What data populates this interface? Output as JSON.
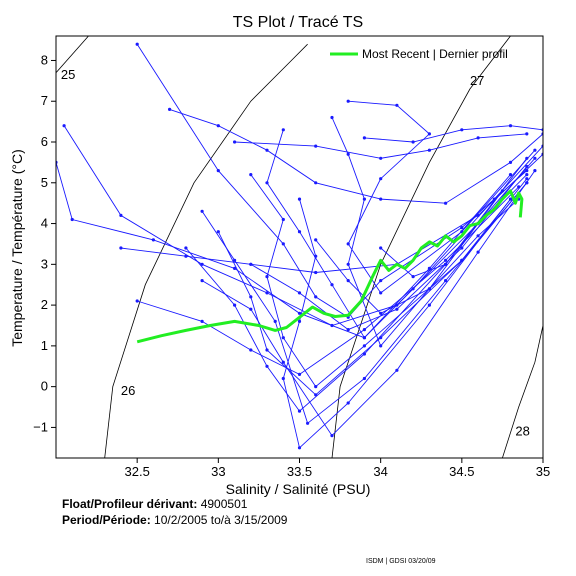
{
  "chart_data": {
    "type": "line",
    "title": "TS Plot / Tracé TS",
    "xlabel": "Salinity / Salinité (PSU)",
    "ylabel": "Temperature / Température (°C)",
    "xlim": [
      32.0,
      35.0
    ],
    "ylim": [
      -1.75,
      8.6
    ],
    "x_ticks": [
      32.5,
      33,
      33.5,
      34,
      34.5,
      35
    ],
    "x_tick_labels": [
      "32.5",
      "33",
      "33.5",
      "34",
      "34.5",
      "35"
    ],
    "y_ticks": [
      -1,
      0,
      1,
      2,
      3,
      4,
      5,
      6,
      7,
      8
    ],
    "y_tick_labels": [
      "−1",
      "0",
      "1",
      "2",
      "3",
      "4",
      "5",
      "6",
      "7",
      "8"
    ],
    "grid": false,
    "legend": {
      "position": "top-right",
      "entries": [
        "Most Recent | Dernier profil"
      ]
    },
    "density_isopleths": [
      {
        "label": "25",
        "points": [
          [
            32.0,
            7.7
          ],
          [
            32.2,
            8.6
          ]
        ]
      },
      {
        "label": "26",
        "points": [
          [
            32.3,
            -1.75
          ],
          [
            32.35,
            0.0
          ],
          [
            32.55,
            2.5
          ],
          [
            32.85,
            5.0
          ],
          [
            33.2,
            7.0
          ],
          [
            33.45,
            8.0
          ],
          [
            33.55,
            8.4
          ]
        ]
      },
      {
        "label": "27",
        "points": [
          [
            33.7,
            -1.75
          ],
          [
            33.75,
            0.0
          ],
          [
            34.0,
            3.0
          ],
          [
            34.3,
            5.5
          ],
          [
            34.55,
            7.3
          ],
          [
            34.8,
            8.6
          ]
        ]
      },
      {
        "label": "28",
        "points": [
          [
            34.75,
            -1.75
          ],
          [
            34.85,
            -0.5
          ],
          [
            34.95,
            0.6
          ],
          [
            35.0,
            1.5
          ]
        ]
      }
    ],
    "profiles_series_name": "",
    "profiles": [
      [
        [
          32.5,
          8.4
        ],
        [
          33.0,
          5.3
        ],
        [
          33.4,
          3.5
        ],
        [
          33.6,
          2.2
        ],
        [
          33.8,
          1.7
        ],
        [
          34.0,
          2.6
        ],
        [
          34.5,
          3.9
        ],
        [
          34.9,
          5.3
        ]
      ],
      [
        [
          32.05,
          6.4
        ],
        [
          32.4,
          4.2
        ],
        [
          32.9,
          3.0
        ],
        [
          33.3,
          2.3
        ],
        [
          33.7,
          1.5
        ],
        [
          34.1,
          2.0
        ],
        [
          34.6,
          4.0
        ],
        [
          34.95,
          5.6
        ]
      ],
      [
        [
          32.0,
          5.5
        ],
        [
          32.1,
          4.1
        ],
        [
          32.6,
          3.6
        ],
        [
          33.1,
          2.9
        ],
        [
          33.5,
          1.8
        ],
        [
          33.9,
          1.2
        ],
        [
          34.3,
          2.9
        ],
        [
          34.8,
          5.2
        ]
      ],
      [
        [
          32.8,
          3.4
        ],
        [
          33.1,
          2.0
        ],
        [
          33.3,
          0.5
        ],
        [
          33.5,
          -0.6
        ],
        [
          33.9,
          0.8
        ],
        [
          34.4,
          3.0
        ],
        [
          34.9,
          5.6
        ]
      ],
      [
        [
          33.4,
          6.3
        ],
        [
          33.3,
          5.0
        ],
        [
          33.5,
          3.8
        ],
        [
          33.7,
          2.5
        ],
        [
          33.9,
          1.2
        ],
        [
          34.2,
          2.4
        ],
        [
          34.7,
          4.6
        ],
        [
          35.0,
          5.9
        ]
      ],
      [
        [
          33.7,
          6.6
        ],
        [
          33.8,
          5.7
        ],
        [
          33.9,
          4.6
        ],
        [
          33.8,
          3.0
        ],
        [
          34.0,
          1.0
        ],
        [
          34.3,
          2.4
        ],
        [
          34.75,
          4.8
        ]
      ],
      [
        [
          33.8,
          7.0
        ],
        [
          34.1,
          6.9
        ],
        [
          34.3,
          6.2
        ],
        [
          34.0,
          5.1
        ],
        [
          33.8,
          3.5
        ],
        [
          34.0,
          2.3
        ],
        [
          34.5,
          3.8
        ],
        [
          34.95,
          5.8
        ]
      ],
      [
        [
          33.2,
          5.2
        ],
        [
          33.4,
          4.1
        ],
        [
          33.3,
          2.7
        ],
        [
          33.4,
          1.2
        ],
        [
          33.6,
          0.0
        ],
        [
          33.9,
          1.0
        ],
        [
          34.5,
          3.1
        ],
        [
          34.9,
          5.0
        ]
      ],
      [
        [
          32.7,
          6.8
        ],
        [
          33.0,
          6.4
        ],
        [
          33.3,
          5.8
        ],
        [
          33.6,
          5.0
        ],
        [
          34.0,
          4.6
        ],
        [
          34.4,
          4.5
        ],
        [
          34.8,
          5.5
        ],
        [
          35.0,
          6.2
        ]
      ],
      [
        [
          33.0,
          3.8
        ],
        [
          33.2,
          2.2
        ],
        [
          33.3,
          0.9
        ],
        [
          33.6,
          -0.2
        ],
        [
          34.0,
          1.2
        ],
        [
          34.5,
          3.1
        ],
        [
          34.9,
          5.1
        ]
      ],
      [
        [
          32.5,
          2.1
        ],
        [
          32.9,
          1.6
        ],
        [
          33.2,
          0.9
        ],
        [
          33.5,
          0.3
        ],
        [
          33.9,
          1.4
        ],
        [
          34.4,
          3.1
        ],
        [
          34.85,
          4.9
        ]
      ],
      [
        [
          33.1,
          6.0
        ],
        [
          33.6,
          5.9
        ],
        [
          34.0,
          5.6
        ],
        [
          34.3,
          5.8
        ],
        [
          34.6,
          6.1
        ],
        [
          34.9,
          6.2
        ]
      ],
      [
        [
          32.4,
          3.4
        ],
        [
          32.8,
          3.2
        ],
        [
          33.2,
          3.0
        ],
        [
          33.6,
          2.8
        ],
        [
          34.1,
          3.0
        ],
        [
          34.6,
          4.2
        ],
        [
          35.0,
          5.7
        ]
      ],
      [
        [
          33.5,
          4.6
        ],
        [
          33.6,
          3.2
        ],
        [
          33.5,
          1.6
        ],
        [
          33.4,
          0.2
        ],
        [
          33.5,
          -1.5
        ],
        [
          33.8,
          -0.4
        ],
        [
          34.3,
          2.0
        ],
        [
          34.8,
          4.6
        ]
      ],
      [
        [
          32.9,
          4.3
        ],
        [
          33.1,
          3.1
        ],
        [
          33.35,
          1.6
        ],
        [
          33.55,
          -0.9
        ],
        [
          33.9,
          0.2
        ],
        [
          34.4,
          2.6
        ],
        [
          34.9,
          5.0
        ]
      ],
      [
        [
          33.9,
          6.1
        ],
        [
          34.2,
          6.0
        ],
        [
          34.5,
          6.3
        ],
        [
          34.8,
          6.4
        ],
        [
          35.0,
          6.3
        ]
      ],
      [
        [
          32.9,
          2.6
        ],
        [
          33.2,
          1.9
        ],
        [
          33.4,
          0.6
        ],
        [
          33.7,
          -1.2
        ],
        [
          34.1,
          0.4
        ],
        [
          34.6,
          3.3
        ],
        [
          34.95,
          5.3
        ]
      ],
      [
        [
          33.6,
          3.6
        ],
        [
          33.8,
          2.6
        ],
        [
          34.0,
          1.8
        ],
        [
          34.3,
          2.4
        ],
        [
          34.6,
          3.7
        ],
        [
          34.85,
          4.6
        ]
      ],
      [
        [
          33.2,
          3.0
        ],
        [
          33.5,
          2.3
        ],
        [
          33.8,
          1.4
        ],
        [
          34.1,
          1.9
        ],
        [
          34.5,
          3.4
        ],
        [
          34.9,
          5.4
        ]
      ],
      [
        [
          34.0,
          3.4
        ],
        [
          34.2,
          2.7
        ],
        [
          34.4,
          3.0
        ],
        [
          34.6,
          4.0
        ],
        [
          34.9,
          5.2
        ]
      ]
    ],
    "most_recent": {
      "name": "Most Recent | Dernier profil",
      "x": [
        32.5,
        32.65,
        32.8,
        32.95,
        33.1,
        33.25,
        33.35,
        33.42,
        33.5,
        33.58,
        33.65,
        33.72,
        33.8,
        33.88,
        33.95,
        34.0,
        34.05,
        34.1,
        34.15,
        34.2,
        34.25,
        34.3,
        34.35,
        34.4,
        34.45,
        34.5,
        34.55,
        34.6,
        34.65,
        34.7,
        34.75,
        34.8,
        34.83,
        34.85,
        34.87,
        34.86
      ],
      "y": [
        1.1,
        1.25,
        1.38,
        1.5,
        1.6,
        1.5,
        1.38,
        1.45,
        1.7,
        1.95,
        1.8,
        1.72,
        1.75,
        2.1,
        2.7,
        3.1,
        2.85,
        3.0,
        2.9,
        3.1,
        3.4,
        3.55,
        3.45,
        3.7,
        3.55,
        3.7,
        3.95,
        4.0,
        4.2,
        4.35,
        4.6,
        4.8,
        4.5,
        4.75,
        4.6,
        4.15
      ]
    }
  },
  "legend_label": "Most Recent | Dernier profil",
  "float_label": "Float/Profileur dérivant:",
  "float_value": "4900501",
  "period_label": "Period/Période:",
  "period_value": "10/2/2005  to/à  3/15/2009",
  "footer": "ISDM | GDSI  03/20/09",
  "colors": {
    "profiles": "#1a1aff",
    "most_recent": "#22ee22",
    "axes": "#000000"
  }
}
